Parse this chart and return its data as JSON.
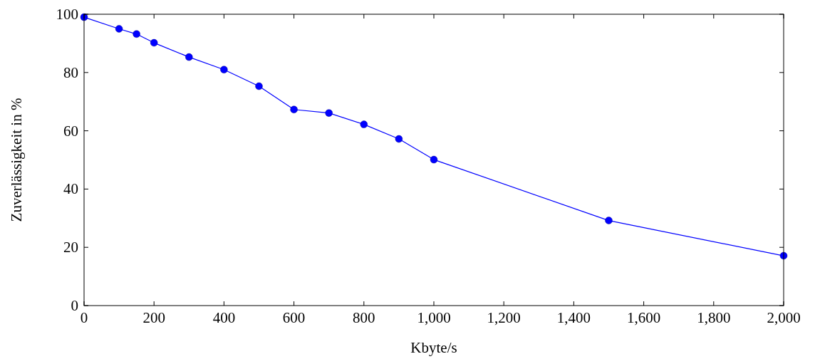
{
  "chart_data": {
    "type": "line",
    "xlabel": "Kbyte/s",
    "ylabel": "Zuverlässigkeit in %",
    "x": [
      0,
      100,
      150,
      200,
      300,
      400,
      500,
      600,
      700,
      800,
      900,
      1000,
      1500,
      2000
    ],
    "series": [
      {
        "color": "#0000ff",
        "values": [
          99,
          95,
          93.2,
          90.2,
          85.3,
          81,
          75.3,
          67.3,
          66.1,
          62.2,
          57.2,
          50.1,
          29.2,
          17.1
        ]
      }
    ],
    "xlim": [
      0,
      2000
    ],
    "ylim": [
      0,
      100
    ],
    "xticks": [
      0,
      200,
      400,
      600,
      800,
      {
        "value": 1000,
        "label": "1,000"
      },
      {
        "value": 1200,
        "label": "1,200"
      },
      {
        "value": 1400,
        "label": "1,400"
      },
      {
        "value": 1600,
        "label": "1,600"
      },
      {
        "value": 1800,
        "label": "1,800"
      },
      {
        "value": 2000,
        "label": "2,000"
      }
    ],
    "yticks": [
      0,
      20,
      40,
      60,
      80,
      100
    ],
    "grid": false,
    "marker": "circle",
    "line_style": "solid"
  }
}
